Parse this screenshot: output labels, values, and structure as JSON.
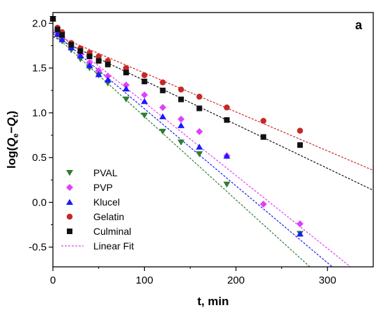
{
  "chart_data": {
    "type": "scatter",
    "panel_label": "a",
    "xlabel": "t, min",
    "ylabel": "log(Qe−Qt)",
    "ylabel_parts": {
      "prefix": "log(",
      "q1": "Q",
      "sub1": "e",
      "minus": "−",
      "q2": "Q",
      "sub2": "t",
      "suffix": ")"
    },
    "xlim": [
      0,
      350
    ],
    "ylim": [
      -0.72,
      2.12
    ],
    "x_ticks": [
      0,
      100,
      200,
      300
    ],
    "x_tick_labels": [
      "0",
      "100",
      "200",
      "300"
    ],
    "y_ticks": [
      -0.5,
      0.0,
      0.5,
      1.0,
      1.5,
      2.0
    ],
    "y_tick_labels": [
      "-0.5",
      "0.0",
      "0.5",
      "1.0",
      "1.5",
      "2.0"
    ],
    "legend_position": "bottom-left",
    "series": [
      {
        "name": "PVAL",
        "marker": "triangle-down",
        "color": "#2e7d32",
        "x": [
          0,
          5,
          10,
          20,
          30,
          40,
          50,
          60,
          80,
          100,
          120,
          140,
          160,
          190,
          270
        ],
        "y": [
          2.05,
          1.87,
          1.8,
          1.7,
          1.6,
          1.5,
          1.42,
          1.33,
          1.15,
          0.97,
          0.79,
          0.67,
          0.54,
          0.2,
          -0.35
        ],
        "fit": {
          "slope": -0.00928,
          "intercept": 1.885,
          "color": "#2e7d32",
          "x_range": [
            0,
            350
          ]
        }
      },
      {
        "name": "PVP",
        "marker": "diamond",
        "color": "#e040fb",
        "x": [
          0,
          5,
          10,
          20,
          30,
          40,
          50,
          60,
          80,
          100,
          120,
          140,
          160,
          190,
          230,
          270
        ],
        "y": [
          2.05,
          1.9,
          1.84,
          1.74,
          1.65,
          1.56,
          1.47,
          1.41,
          1.31,
          1.2,
          1.06,
          0.93,
          0.79,
          0.52,
          -0.02,
          -0.24
        ],
        "fit": {
          "slope": -0.00815,
          "intercept": 1.93,
          "color": "#e040fb",
          "x_range": [
            0,
            350
          ]
        }
      },
      {
        "name": "Klucel",
        "marker": "triangle-up",
        "color": "#1a1aff",
        "x": [
          0,
          5,
          10,
          20,
          30,
          40,
          50,
          60,
          80,
          100,
          120,
          140,
          160,
          190,
          270
        ],
        "y": [
          2.05,
          1.88,
          1.82,
          1.73,
          1.64,
          1.53,
          1.43,
          1.37,
          1.27,
          1.13,
          0.96,
          0.86,
          0.62,
          0.52,
          -0.35
        ],
        "fit": {
          "slope": -0.0086,
          "intercept": 1.905,
          "color": "#1a1aff",
          "x_range": [
            0,
            350
          ]
        }
      },
      {
        "name": "Gelatin",
        "marker": "circle",
        "color": "#c62828",
        "x": [
          0,
          5,
          10,
          20,
          30,
          40,
          50,
          60,
          80,
          100,
          120,
          140,
          160,
          190,
          230,
          270
        ],
        "y": [
          2.05,
          1.95,
          1.9,
          1.78,
          1.72,
          1.67,
          1.63,
          1.58,
          1.5,
          1.42,
          1.34,
          1.26,
          1.18,
          1.06,
          0.91,
          0.8
        ],
        "fit": {
          "slope": -0.00435,
          "intercept": 1.88,
          "color": "#c62828",
          "x_range": [
            0,
            350
          ]
        }
      },
      {
        "name": "Culminal",
        "marker": "square",
        "color": "#111111",
        "x": [
          0,
          5,
          10,
          20,
          30,
          40,
          50,
          60,
          80,
          100,
          120,
          140,
          160,
          190,
          230,
          270
        ],
        "y": [
          2.05,
          1.93,
          1.87,
          1.76,
          1.69,
          1.63,
          1.58,
          1.54,
          1.45,
          1.35,
          1.25,
          1.15,
          1.05,
          0.92,
          0.73,
          0.64
        ],
        "fit": {
          "slope": -0.0049,
          "intercept": 1.85,
          "color": "#111111",
          "x_range": [
            0,
            350
          ]
        }
      }
    ],
    "legend_fit_label": "Linear Fit",
    "legend_fit_color": "#e040fb"
  }
}
